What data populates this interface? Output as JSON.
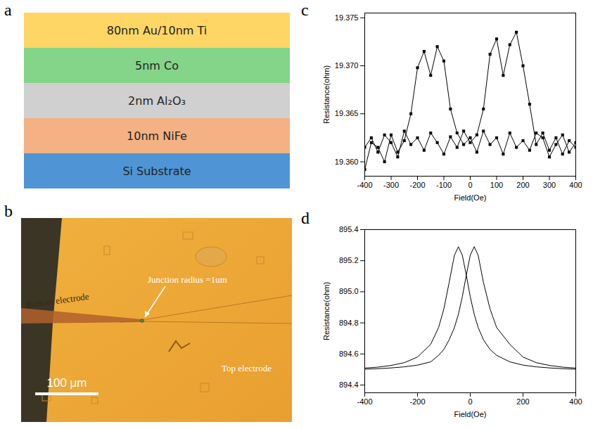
{
  "panels": {
    "a": {
      "letter": "a",
      "layers": [
        {
          "label": "80nm Au/10nm Ti",
          "color": "#fdd665"
        },
        {
          "label": "5nm Co",
          "color": "#84d48a"
        },
        {
          "label": "2nm Al₂O₃",
          "color": "#d0d0d0"
        },
        {
          "label": "10nm NiFe",
          "color": "#f4b183"
        },
        {
          "label": "Si Substrate",
          "color": "#4f95d6"
        }
      ]
    },
    "b": {
      "letter": "b",
      "labels": {
        "bottom_electrode": "Bottom electrode",
        "junction": "Junction radius =1um",
        "top_electrode": "Top electrode",
        "scale_bar": "100 μm"
      }
    },
    "c": {
      "letter": "c"
    },
    "d": {
      "letter": "d"
    }
  },
  "chart_data": [
    {
      "type": "line",
      "marker": "square",
      "x_label": "Field(Oe)",
      "y_label": "Resistance(ohm)",
      "xlim": [
        -400,
        400
      ],
      "xticks": [
        -400,
        -300,
        -200,
        -100,
        0,
        100,
        200,
        300,
        400
      ],
      "ylim": [
        19.3585,
        19.3755
      ],
      "yticks": [
        {
          "value": 19.36,
          "label": "19.360"
        },
        19.365,
        {
          "value": 19.37,
          "label": "19.370"
        },
        19.375
      ],
      "series": [
        {
          "color": "#000000",
          "x": [
            -400,
            -375,
            -350,
            -325,
            -300,
            -275,
            -250,
            -225,
            -200,
            -175,
            -150,
            -125,
            -100,
            -75,
            -50,
            -25,
            0,
            25,
            50,
            75,
            100,
            125,
            150,
            175,
            200,
            225,
            250,
            275,
            300,
            325,
            350,
            375,
            400
          ],
          "values": [
            19.3615,
            19.3625,
            19.361,
            19.3628,
            19.362,
            19.3605,
            19.3632,
            19.3618,
            19.3625,
            19.3612,
            19.363,
            19.362,
            19.3608,
            19.3626,
            19.3615,
            19.3632,
            19.362,
            19.3628,
            19.3655,
            19.3712,
            19.3728,
            19.369,
            19.3722,
            19.3735,
            19.37,
            19.366,
            19.3618,
            19.363,
            19.3612,
            19.3625,
            19.3608,
            19.3622,
            19.3615
          ]
        },
        {
          "color": "#000000",
          "x": [
            400,
            375,
            350,
            325,
            300,
            275,
            250,
            225,
            200,
            175,
            150,
            125,
            100,
            75,
            50,
            25,
            0,
            -25,
            -50,
            -75,
            -100,
            -125,
            -150,
            -175,
            -200,
            -225,
            -250,
            -275,
            -300,
            -325,
            -350,
            -375,
            -400
          ],
          "values": [
            19.362,
            19.361,
            19.3628,
            19.3618,
            19.3605,
            19.3625,
            19.363,
            19.3612,
            19.3622,
            19.3615,
            19.363,
            19.3608,
            19.3625,
            19.3618,
            19.3632,
            19.361,
            19.3625,
            19.3618,
            19.363,
            19.3655,
            19.3705,
            19.372,
            19.369,
            19.3715,
            19.3698,
            19.365,
            19.3622,
            19.361,
            19.3628,
            19.36,
            19.3615,
            19.362,
            19.3592
          ]
        }
      ]
    },
    {
      "type": "line",
      "x_label": "Field(Oe)",
      "y_label": "Resistance(ohm)",
      "xlim": [
        -400,
        400
      ],
      "xticks": [
        -400,
        -200,
        0,
        200,
        400
      ],
      "ylim": [
        894.35,
        895.4
      ],
      "yticks": [
        894.4,
        894.6,
        894.8,
        {
          "value": 895,
          "label": "895.0"
        },
        895.2,
        895.4
      ],
      "x": [
        -400,
        -350,
        -300,
        -250,
        -200,
        -150,
        -120,
        -100,
        -80,
        -60,
        -45,
        -30,
        -15,
        0,
        15,
        30,
        50,
        75,
        100,
        150,
        200,
        250,
        300,
        350,
        400
      ],
      "series": [
        {
          "color": "#000000",
          "values": [
            894.509,
            894.515,
            894.526,
            894.544,
            894.58,
            894.662,
            894.77,
            894.89,
            895.06,
            895.235,
            895.29,
            895.235,
            895.107,
            894.969,
            894.855,
            894.77,
            894.691,
            894.629,
            894.591,
            894.549,
            894.528,
            894.517,
            894.51,
            894.505,
            894.502
          ]
        },
        {
          "color": "#000000",
          "values": [
            894.502,
            894.505,
            894.51,
            894.517,
            894.528,
            894.549,
            894.591,
            894.629,
            894.691,
            894.77,
            894.855,
            894.969,
            895.107,
            895.235,
            895.29,
            895.235,
            895.06,
            894.89,
            894.77,
            894.662,
            894.58,
            894.544,
            894.526,
            894.515,
            894.509
          ]
        }
      ]
    }
  ]
}
